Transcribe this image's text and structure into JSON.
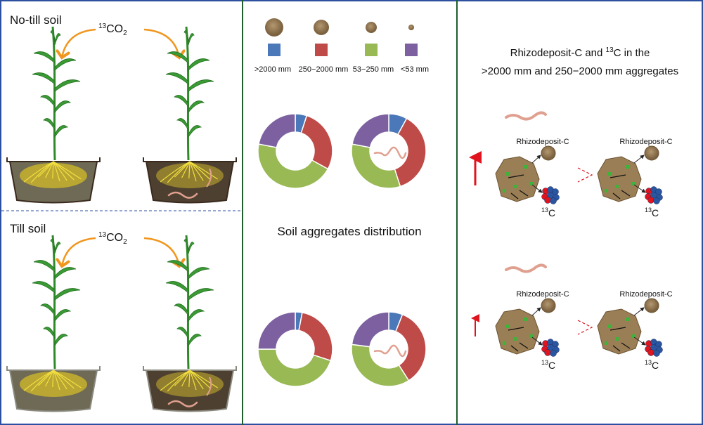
{
  "left_panel": {
    "top_label": "No-till soil",
    "bottom_label": "Till soil",
    "co2": {
      "sup": "13",
      "main": "CO",
      "sub": "2"
    }
  },
  "middle_panel": {
    "legend": [
      {
        "label": ">2000 mm",
        "color": "#4a78b8"
      },
      {
        "label": "250−2000 mm",
        "color": "#be4b48"
      },
      {
        "label": "53−250 mm",
        "color": "#98b954"
      },
      {
        "label": "<53 mm",
        "color": "#7d60a0"
      }
    ],
    "title": "Soil aggregates distribution"
  },
  "chart_data": [
    {
      "type": "pie",
      "name": "no-till-without-earthworm",
      "labels": [
        ">2000 mm",
        "250−2000 mm",
        "53−250 mm",
        "<53 mm"
      ],
      "values": [
        5,
        28,
        45,
        22
      ]
    },
    {
      "type": "pie",
      "name": "no-till-with-earthworm",
      "labels": [
        ">2000 mm",
        "250−2000 mm",
        "53−250 mm",
        "<53 mm"
      ],
      "values": [
        8,
        37,
        33,
        22
      ]
    },
    {
      "type": "pie",
      "name": "till-without-earthworm",
      "labels": [
        ">2000 mm",
        "250−2000 mm",
        "53−250 mm",
        "<53 mm"
      ],
      "values": [
        3,
        27,
        45,
        25
      ]
    },
    {
      "type": "pie",
      "name": "till-with-earthworm",
      "labels": [
        ">2000 mm",
        "250−2000 mm",
        "53−250 mm",
        "<53 mm"
      ],
      "values": [
        6,
        35,
        36,
        23
      ]
    }
  ],
  "right_panel": {
    "title_line1_a": "Rhizodeposit-C and ",
    "title_line1_sup": "13",
    "title_line1_b": "C in the",
    "title_line2": ">2000 mm and 250−2000 mm aggregates",
    "rhizo_label": "Rhizodeposit-C",
    "c13_sup": "13",
    "c13_main": "C"
  },
  "colors": {
    "border_outer": "#2d4fa0",
    "border_inner": "#1d5e2a",
    "arrow_orange": "#f0961e",
    "arrow_red": "#e0141e"
  }
}
